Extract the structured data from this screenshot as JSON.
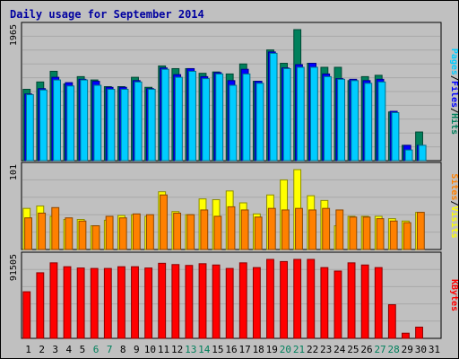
{
  "chart_data": {
    "type": "bar",
    "title": "Daily usage for September 2014",
    "categories": [
      "1",
      "2",
      "3",
      "4",
      "5",
      "6",
      "7",
      "8",
      "9",
      "10",
      "11",
      "12",
      "13",
      "14",
      "15",
      "16",
      "17",
      "18",
      "19",
      "20",
      "21",
      "22",
      "23",
      "24",
      "25",
      "26",
      "27",
      "28",
      "29",
      "30",
      "31"
    ],
    "weekend_days": [
      "6",
      "7",
      "13",
      "14",
      "20",
      "21",
      "27",
      "28"
    ],
    "panels": [
      {
        "id": "top",
        "ymax_label": "1965",
        "ymax": 1965,
        "right_labels": [
          "Pages",
          "/",
          "Files",
          "/",
          "Hits"
        ],
        "right_label_colors": [
          "#00ccff",
          "#000000",
          "#0000ff",
          "#000000",
          "#00805c"
        ],
        "series": [
          {
            "name": "Hits",
            "color": "#00805c",
            "values": [
              1070,
              1180,
              1340,
              1150,
              1260,
              1210,
              1110,
              1110,
              1250,
              1100,
              1420,
              1380,
              1380,
              1310,
              1330,
              1300,
              1450,
              1190,
              1660,
              1460,
              1965,
              1460,
              1400,
              1400,
              1200,
              1260,
              1280,
              730,
              230,
              430,
              null
            ]
          },
          {
            "name": "Files",
            "color": "#0000ff",
            "values": [
              1000,
              1080,
              1250,
              1170,
              1220,
              1190,
              1100,
              1100,
              1200,
              1080,
              1390,
              1290,
              1380,
              1260,
              1320,
              1200,
              1370,
              1190,
              1630,
              1390,
              1440,
              1460,
              1300,
              1230,
              1220,
              1200,
              1220,
              740,
              230,
              230,
              null
            ]
          },
          {
            "name": "Pages",
            "color": "#00ccff",
            "values": [
              990,
              1060,
              1210,
              1120,
              1210,
              1130,
              1070,
              1070,
              1180,
              1070,
              1370,
              1250,
              1340,
              1230,
              1300,
              1130,
              1300,
              1160,
              1610,
              1380,
              1400,
              1400,
              1260,
              1220,
              1200,
              1160,
              1180,
              720,
              160,
              230,
              null
            ]
          }
        ]
      },
      {
        "id": "mid",
        "ymax_label": "101",
        "ymax": 101,
        "right_labels": [
          "Sites",
          "/",
          "Visits"
        ],
        "right_label_colors": [
          "#ff8000",
          "#000000",
          "#ffff00"
        ],
        "series": [
          {
            "name": "Visits",
            "color": "#ffff00",
            "values": [
              52,
              55,
              42,
              38,
              38,
              30,
              37,
              43,
              44,
              42,
              73,
              48,
              44,
              64,
              63,
              74,
              59,
              45,
              69,
              88,
              101,
              68,
              62,
              30,
              42,
              42,
              42,
              39,
              36,
              47,
              null
            ]
          },
          {
            "name": "Sites",
            "color": "#ff8000",
            "values": [
              40,
              46,
              53,
              40,
              36,
              30,
              42,
              40,
              45,
              44,
              69,
              46,
              44,
              50,
              42,
              54,
              50,
              41,
              52,
              50,
              52,
              50,
              52,
              50,
              41,
              41,
              39,
              36,
              34,
              47,
              null
            ]
          }
        ]
      },
      {
        "id": "bot",
        "ymax_label": "91505",
        "ymax": 91505,
        "right_labels": [
          "KBytes"
        ],
        "right_label_colors": [
          "#ff0000"
        ],
        "series": [
          {
            "name": "KBytes",
            "color": "#ff0000",
            "values": [
              54000,
              76000,
              87500,
              83000,
              81500,
              81000,
              81000,
              83000,
              83000,
              81500,
              87000,
              85500,
              84500,
              86500,
              85000,
              81000,
              87500,
              82000,
              91505,
              89000,
              91505,
              91505,
              82000,
              78000,
              87500,
              85000,
              82000,
              39000,
              6000,
              13000,
              null
            ]
          }
        ]
      }
    ]
  }
}
